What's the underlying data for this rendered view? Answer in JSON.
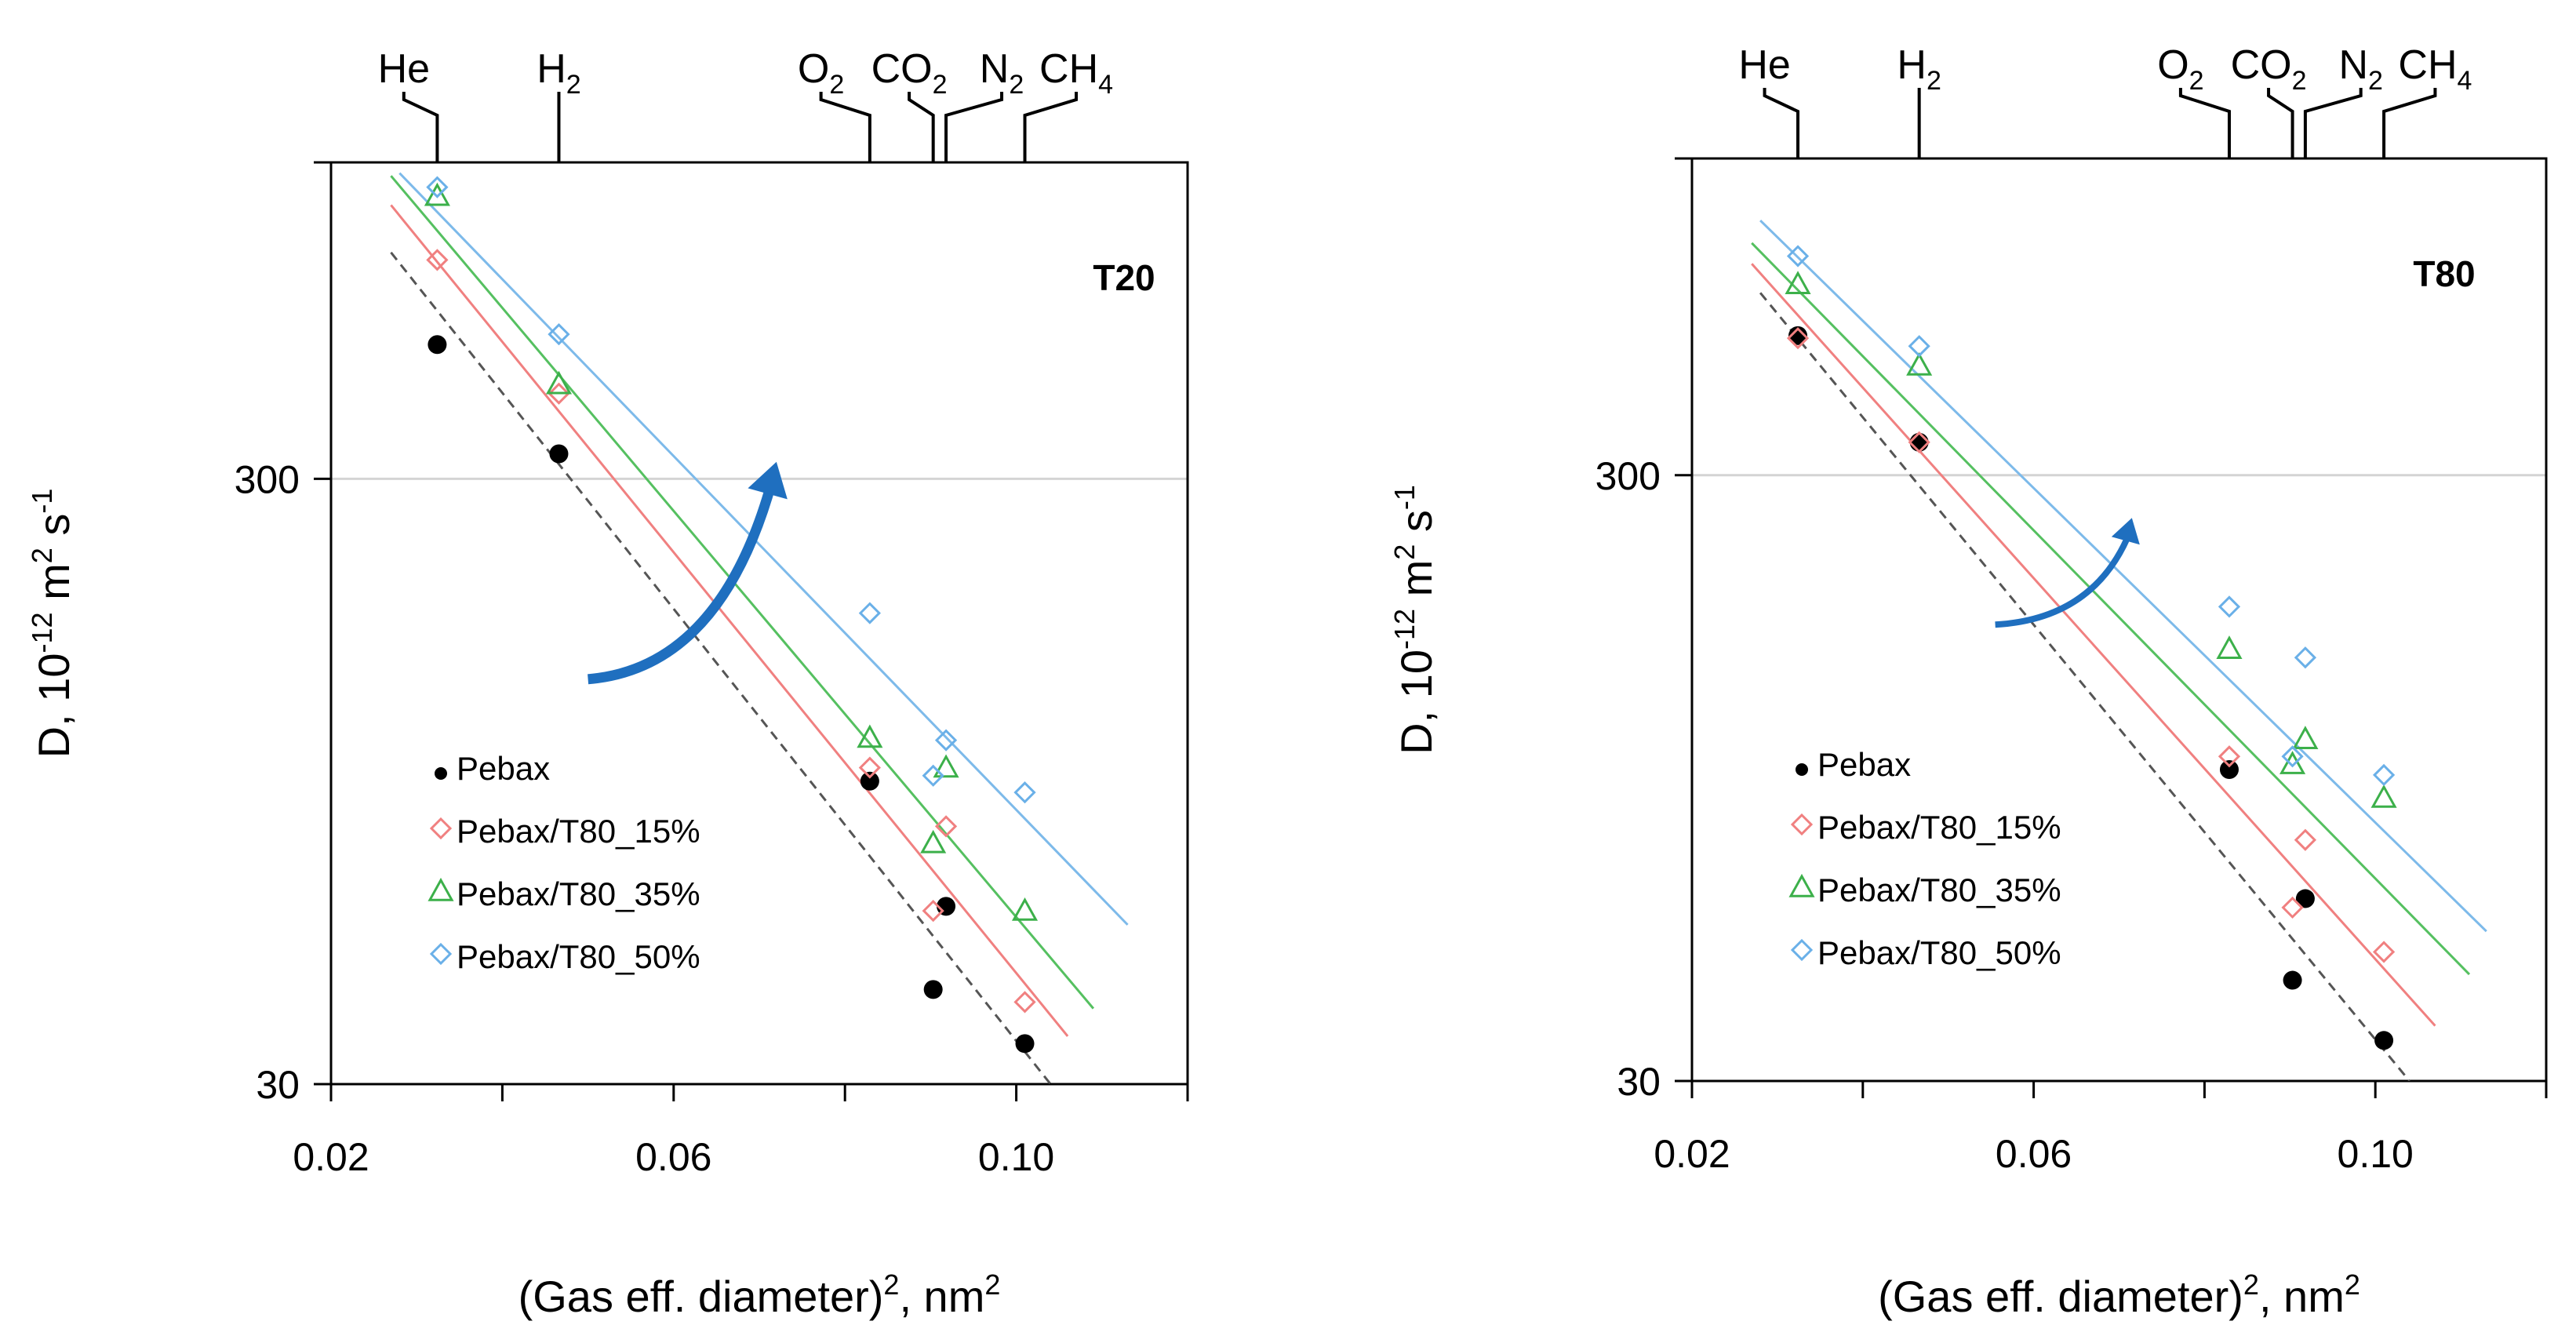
{
  "chart_data": [
    {
      "type": "scatter",
      "panel_label": "T20",
      "xlabel": "(Gas eff. diameter)",
      "xlabel_sup": "2",
      "xlabel_unit": ", nm",
      "xlabel_unit_sup": "2",
      "ylabel_main": "D, 10",
      "ylabel_exp1": "-12",
      "ylabel_mid": " m",
      "ylabel_exp2": "2",
      "ylabel_tail": " s",
      "ylabel_exp3": "-1",
      "xlim": [
        0.02,
        0.12
      ],
      "ylim": [
        30,
        1000
      ],
      "yscale": "log",
      "x_ticks": [
        0.02,
        0.06,
        0.1
      ],
      "x_tick_labels": [
        "0.02",
        "0.06",
        "0.10"
      ],
      "y_ticks": [
        30,
        300
      ],
      "y_tick_labels": [
        "30",
        "300"
      ],
      "gridline": 300,
      "arrow": {
        "from": [
          0.05,
          140
        ],
        "to": [
          0.072,
          320
        ]
      },
      "gases": [
        {
          "label": "He",
          "sub": "",
          "x": 0.0324,
          "label_x": 0.0285
        },
        {
          "label": "H",
          "sub": "2",
          "x": 0.0466,
          "label_x": 0.0466
        },
        {
          "label": "O",
          "sub": "2",
          "x": 0.0829,
          "label_x": 0.0772
        },
        {
          "label": "CO",
          "sub": "2",
          "x": 0.0903,
          "label_x": 0.0875
        },
        {
          "label": "N",
          "sub": "2",
          "x": 0.0918,
          "label_x": 0.0983
        },
        {
          "label": "CH",
          "sub": "4",
          "x": 0.101,
          "label_x": 0.107
        }
      ],
      "series": [
        {
          "name": "Pebax",
          "marker": "dot",
          "color": "#000000",
          "line_color": "#555555",
          "dashed": true,
          "points": [
            [
              0.0324,
              500
            ],
            [
              0.0466,
              330
            ],
            [
              0.0829,
              95
            ],
            [
              0.0903,
              43
            ],
            [
              0.0918,
              59
            ],
            [
              0.101,
              35
            ]
          ],
          "fit": [
            [
              0.027,
              710
            ],
            [
              0.104,
              30
            ]
          ]
        },
        {
          "name": "Pebax/T80_15%",
          "marker": "diamond",
          "color": "#f08080",
          "line_color": "#f08080",
          "dashed": false,
          "points": [
            [
              0.0324,
              690
            ],
            [
              0.0466,
              415
            ],
            [
              0.0829,
              100
            ],
            [
              0.0903,
              58
            ],
            [
              0.0918,
              80
            ],
            [
              0.101,
              41
            ]
          ],
          "fit": [
            [
              0.027,
              850
            ],
            [
              0.106,
              36
            ]
          ]
        },
        {
          "name": "Pebax/T80_35%",
          "marker": "triangle",
          "color": "#3cb04a",
          "line_color": "#55c060",
          "dashed": false,
          "points": [
            [
              0.0324,
              880
            ],
            [
              0.0466,
              430
            ],
            [
              0.0829,
              112
            ],
            [
              0.0903,
              75
            ],
            [
              0.0918,
              100
            ],
            [
              0.101,
              58
            ]
          ],
          "fit": [
            [
              0.027,
              950
            ],
            [
              0.109,
              40
            ]
          ]
        },
        {
          "name": "Pebax/T80_50%",
          "marker": "diamond",
          "color": "#6ab0e8",
          "line_color": "#7dbaea",
          "dashed": false,
          "points": [
            [
              0.0324,
              910
            ],
            [
              0.0466,
              520
            ],
            [
              0.0829,
              180
            ],
            [
              0.0903,
              97
            ],
            [
              0.0918,
              111
            ],
            [
              0.101,
              91
            ]
          ],
          "fit": [
            [
              0.028,
              960
            ],
            [
              0.113,
              55
            ]
          ]
        }
      ]
    },
    {
      "type": "scatter",
      "panel_label": "T80",
      "xlabel": "(Gas eff. diameter)",
      "xlabel_sup": "2",
      "xlabel_unit": ", nm",
      "xlabel_unit_sup": "2",
      "ylabel_main": "D, 10",
      "ylabel_exp1": "-12",
      "ylabel_mid": " m",
      "ylabel_exp2": "2",
      "ylabel_tail": " s",
      "ylabel_exp3": "-1",
      "xlim": [
        0.02,
        0.12
      ],
      "ylim": [
        30,
        1000
      ],
      "yscale": "log",
      "x_ticks": [
        0.02,
        0.06,
        0.1
      ],
      "x_tick_labels": [
        "0.02",
        "0.06",
        "0.10"
      ],
      "y_ticks": [
        30,
        300
      ],
      "y_tick_labels": [
        "30",
        "300"
      ],
      "gridline": 300,
      "arrow": {
        "from": [
          0.0555,
          170
        ],
        "to": [
          0.0715,
          255
        ]
      },
      "gases": [
        {
          "label": "He",
          "sub": "",
          "x": 0.0324,
          "label_x": 0.0285
        },
        {
          "label": "H",
          "sub": "2",
          "x": 0.0466,
          "label_x": 0.0466
        },
        {
          "label": "O",
          "sub": "2",
          "x": 0.0829,
          "label_x": 0.0772
        },
        {
          "label": "CO",
          "sub": "2",
          "x": 0.0903,
          "label_x": 0.0875
        },
        {
          "label": "N",
          "sub": "2",
          "x": 0.0918,
          "label_x": 0.0983
        },
        {
          "label": "CH",
          "sub": "4",
          "x": 0.101,
          "label_x": 0.107
        }
      ],
      "series": [
        {
          "name": "Pebax",
          "marker": "dot",
          "color": "#000000",
          "line_color": "#555555",
          "dashed": true,
          "points": [
            [
              0.0324,
              510
            ],
            [
              0.0466,
              340
            ],
            [
              0.0829,
              98
            ],
            [
              0.0903,
              44
            ],
            [
              0.0918,
              60
            ],
            [
              0.101,
              35
            ]
          ],
          "fit": [
            [
              0.028,
              600
            ],
            [
              0.104,
              30
            ]
          ]
        },
        {
          "name": "Pebax/T80_15%",
          "marker": "diamond",
          "color": "#f08080",
          "line_color": "#f08080",
          "dashed": false,
          "points": [
            [
              0.0324,
              505
            ],
            [
              0.0466,
              340
            ],
            [
              0.0829,
              103
            ],
            [
              0.0903,
              58
            ],
            [
              0.0918,
              75
            ],
            [
              0.101,
              49
            ]
          ],
          "fit": [
            [
              0.027,
              670
            ],
            [
              0.107,
              37
            ]
          ]
        },
        {
          "name": "Pebax/T80_35%",
          "marker": "triangle",
          "color": "#3cb04a",
          "line_color": "#55c060",
          "dashed": false,
          "points": [
            [
              0.0324,
              620
            ],
            [
              0.0466,
              455
            ],
            [
              0.0829,
              155
            ],
            [
              0.0903,
              100
            ],
            [
              0.0918,
              110
            ],
            [
              0.101,
              88
            ]
          ],
          "fit": [
            [
              0.027,
              725
            ],
            [
              0.111,
              45
            ]
          ]
        },
        {
          "name": "Pebax/T80_50%",
          "marker": "diamond",
          "color": "#6ab0e8",
          "line_color": "#7dbaea",
          "dashed": false,
          "points": [
            [
              0.0324,
              690
            ],
            [
              0.0466,
              490
            ],
            [
              0.0829,
              182
            ],
            [
              0.0903,
              103
            ],
            [
              0.0918,
              150
            ],
            [
              0.101,
              96
            ]
          ],
          "fit": [
            [
              0.028,
              790
            ],
            [
              0.113,
              53
            ]
          ]
        }
      ]
    }
  ]
}
